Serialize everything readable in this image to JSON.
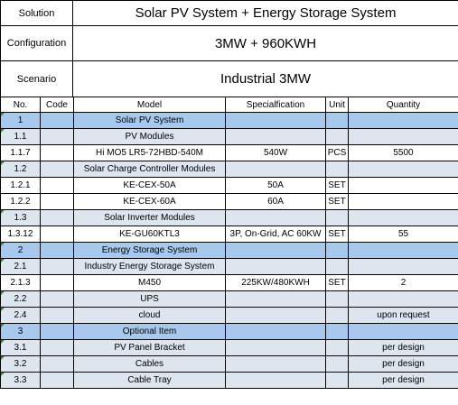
{
  "header": {
    "solution_label": "Solution",
    "solution_value": "Solar PV System + Energy Storage System",
    "configuration_label": "Configuration",
    "configuration_value": "3MW + 960KWH",
    "scenario_label": "Scenario",
    "scenario_value": "Industrial 3MW"
  },
  "columns": {
    "no": "No.",
    "code": "Code",
    "model": "Model",
    "spec": "Specialfication",
    "unit": "Unit",
    "qty": "Quantity"
  },
  "rows": [
    {
      "no": "1",
      "code": "",
      "model": "Solar PV System",
      "spec": "",
      "unit": "",
      "qty": ""
    },
    {
      "no": "1.1",
      "code": "",
      "model": "PV Modules",
      "spec": "",
      "unit": "",
      "qty": ""
    },
    {
      "no": "1.1.7",
      "code": "",
      "model": "Hi MO5 LR5-72HBD-540M",
      "spec": "540W",
      "unit": "PCS",
      "qty": "5500"
    },
    {
      "no": "1.2",
      "code": "",
      "model": "Solar Charge Controller Modules",
      "spec": "",
      "unit": "",
      "qty": ""
    },
    {
      "no": "1.2.1",
      "code": "",
      "model": "KE-CEX-50A",
      "spec": "50A",
      "unit": "SET",
      "qty": ""
    },
    {
      "no": "1.2.2",
      "code": "",
      "model": "KE-CEX-60A",
      "spec": "60A",
      "unit": "SET",
      "qty": ""
    },
    {
      "no": "1.3",
      "code": "",
      "model": "Solar Inverter Modules",
      "spec": "",
      "unit": "",
      "qty": ""
    },
    {
      "no": "1.3.12",
      "code": "",
      "model": "KE-GU60KTL3",
      "spec": "3P, On-Grid, AC 60KW",
      "unit": "SET",
      "qty": "55"
    },
    {
      "no": "2",
      "code": "",
      "model": "Energy Storage System",
      "spec": "",
      "unit": "",
      "qty": ""
    },
    {
      "no": "2.1",
      "code": "",
      "model": "Industry Energy Storage System",
      "spec": "",
      "unit": "",
      "qty": ""
    },
    {
      "no": "2.1.3",
      "code": "",
      "model": "M450",
      "spec": "225KW/480KWH",
      "unit": "SET",
      "qty": "2"
    },
    {
      "no": "2.2",
      "code": "",
      "model": "UPS",
      "spec": "",
      "unit": "",
      "qty": ""
    },
    {
      "no": "2.4",
      "code": "",
      "model": "cloud",
      "spec": "",
      "unit": "",
      "qty": "upon request"
    },
    {
      "no": "3",
      "code": "",
      "model": "Optional Item",
      "spec": "",
      "unit": "",
      "qty": ""
    },
    {
      "no": "3.1",
      "code": "",
      "model": "PV Panel Bracket",
      "spec": "",
      "unit": "",
      "qty": "per design"
    },
    {
      "no": "3.2",
      "code": "",
      "model": "Cables",
      "spec": "",
      "unit": "",
      "qty": "per design"
    },
    {
      "no": "3.3",
      "code": "",
      "model": "Cable Tray",
      "spec": "",
      "unit": "",
      "qty": "per design"
    }
  ],
  "colors": {
    "section_fill": "#a9c8ee",
    "light_fill": "#dde5ee",
    "marker": "#2f8a3a"
  }
}
